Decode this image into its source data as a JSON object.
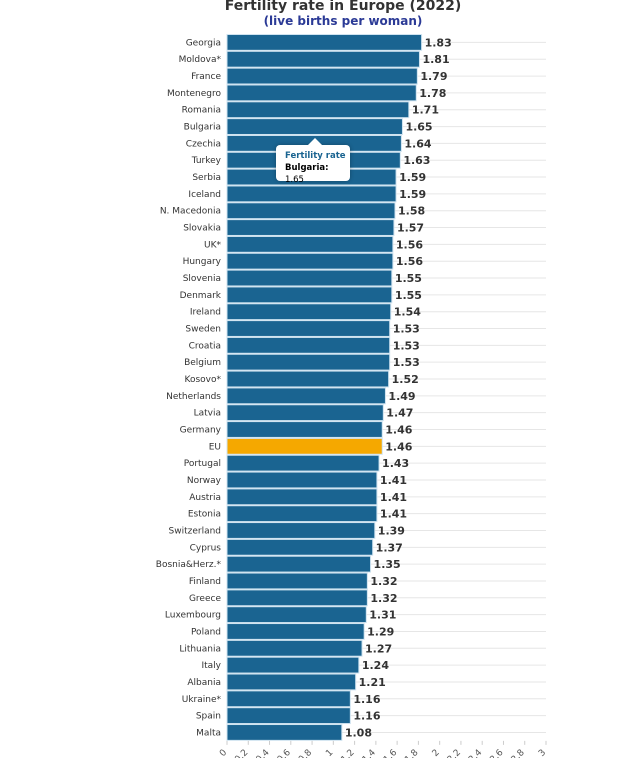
{
  "chart_data": {
    "type": "bar",
    "orientation": "horizontal",
    "title": "Fertility rate in Europe (2022)",
    "subtitle": "(live births per woman)",
    "series_name": "Fertility rate",
    "categories": [
      "Georgia",
      "Moldova*",
      "France",
      "Montenegro",
      "Romania",
      "Bulgaria",
      "Czechia",
      "Turkey",
      "Serbia",
      "Iceland",
      "N. Macedonia",
      "Slovakia",
      "UK*",
      "Hungary",
      "Slovenia",
      "Denmark",
      "Ireland",
      "Sweden",
      "Croatia",
      "Belgium",
      "Kosovo*",
      "Netherlands",
      "Latvia",
      "Germany",
      "EU",
      "Portugal",
      "Norway",
      "Austria",
      "Estonia",
      "Switzerland",
      "Cyprus",
      "Bosnia&Herz.*",
      "Finland",
      "Greece",
      "Luxembourg",
      "Poland",
      "Lithuania",
      "Italy",
      "Albania",
      "Ukraine*",
      "Spain",
      "Malta"
    ],
    "values": [
      1.83,
      1.81,
      1.79,
      1.78,
      1.71,
      1.65,
      1.64,
      1.63,
      1.59,
      1.59,
      1.58,
      1.57,
      1.56,
      1.56,
      1.55,
      1.55,
      1.54,
      1.53,
      1.53,
      1.53,
      1.52,
      1.49,
      1.47,
      1.46,
      1.46,
      1.43,
      1.41,
      1.41,
      1.41,
      1.39,
      1.37,
      1.35,
      1.32,
      1.32,
      1.31,
      1.29,
      1.27,
      1.24,
      1.21,
      1.16,
      1.16,
      1.08
    ],
    "highlight": "EU",
    "xlim": [
      0,
      3
    ],
    "xticks": [
      "0",
      "0.2",
      "0.4",
      "0.6",
      "0.8",
      "1",
      "1.2",
      "1.4",
      "1.6",
      "1.8",
      "2",
      "2.2",
      "2.4",
      "2.6",
      "2.8",
      "3"
    ],
    "grid": true,
    "colors": {
      "bar": "#1a6491",
      "highlight": "#f5a800"
    }
  },
  "tooltip": {
    "series": "Fertility rate",
    "country": "Bulgaria:",
    "value": "1.65"
  }
}
